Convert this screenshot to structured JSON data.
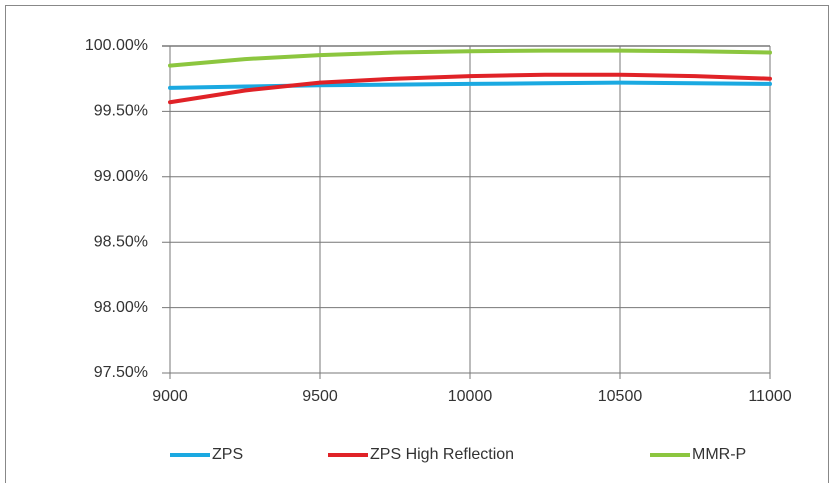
{
  "chart_data": {
    "type": "line",
    "x": [
      9000,
      9250,
      9500,
      9750,
      10000,
      10250,
      10500,
      10750,
      11000
    ],
    "series": [
      {
        "name": "ZPS",
        "color": "#1ba9e1",
        "values": [
          99.68,
          99.69,
          99.7,
          99.705,
          99.71,
          99.715,
          99.72,
          99.715,
          99.71
        ]
      },
      {
        "name": "ZPS High Reflection",
        "color": "#e02227",
        "values": [
          99.57,
          99.66,
          99.72,
          99.75,
          99.77,
          99.78,
          99.78,
          99.77,
          99.75
        ]
      },
      {
        "name": "MMR-P",
        "color": "#8cc63f",
        "values": [
          99.85,
          99.9,
          99.93,
          99.95,
          99.96,
          99.965,
          99.965,
          99.96,
          99.95
        ]
      }
    ],
    "xlim": [
      9000,
      11000
    ],
    "xticks": [
      9000,
      9500,
      10000,
      10500,
      11000
    ],
    "ylim": [
      97.5,
      100
    ],
    "yticks": [
      {
        "value": 97.5,
        "label": "97.50%"
      },
      {
        "value": 98,
        "label": "98.00%"
      },
      {
        "value": 98.5,
        "label": "98.50%"
      },
      {
        "value": 99,
        "label": "99.00%"
      },
      {
        "value": 99.5,
        "label": "99.50%"
      },
      {
        "value": 100,
        "label": "100.00%"
      }
    ],
    "grid": true,
    "legend": "bottom"
  }
}
